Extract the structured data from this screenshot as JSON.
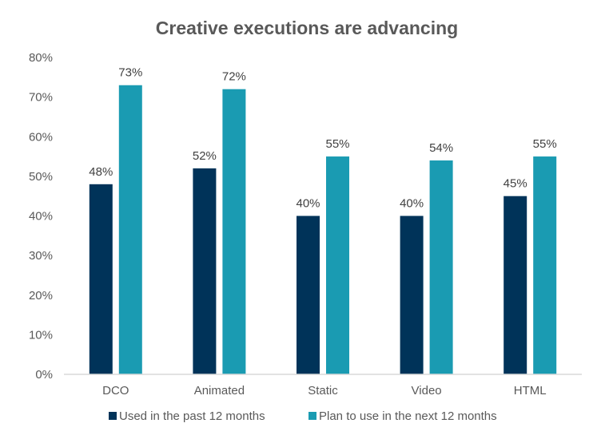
{
  "chart_data": {
    "type": "bar",
    "title": "Creative executions are advancing",
    "xlabel": "",
    "ylabel": "",
    "categories": [
      "DCO",
      "Animated",
      "Static",
      "Video",
      "HTML"
    ],
    "series": [
      {
        "name": "Used in the past 12 months",
        "color": "#003359",
        "values": [
          48,
          52,
          40,
          40,
          45
        ],
        "labels": [
          "48%",
          "52%",
          "40%",
          "40%",
          "45%"
        ]
      },
      {
        "name": "Plan to use in the next 12 months",
        "color": "#1a9bb2",
        "values": [
          73,
          72,
          55,
          54,
          55
        ],
        "labels": [
          "73%",
          "72%",
          "55%",
          "54%",
          "55%"
        ]
      }
    ],
    "ylim": [
      0,
      80
    ],
    "yticks": [
      0,
      10,
      20,
      30,
      40,
      50,
      60,
      70,
      80
    ],
    "ytick_labels": [
      "0%",
      "10%",
      "20%",
      "30%",
      "40%",
      "50%",
      "60%",
      "70%",
      "80%"
    ],
    "grid": false,
    "legend_position": "bottom"
  }
}
